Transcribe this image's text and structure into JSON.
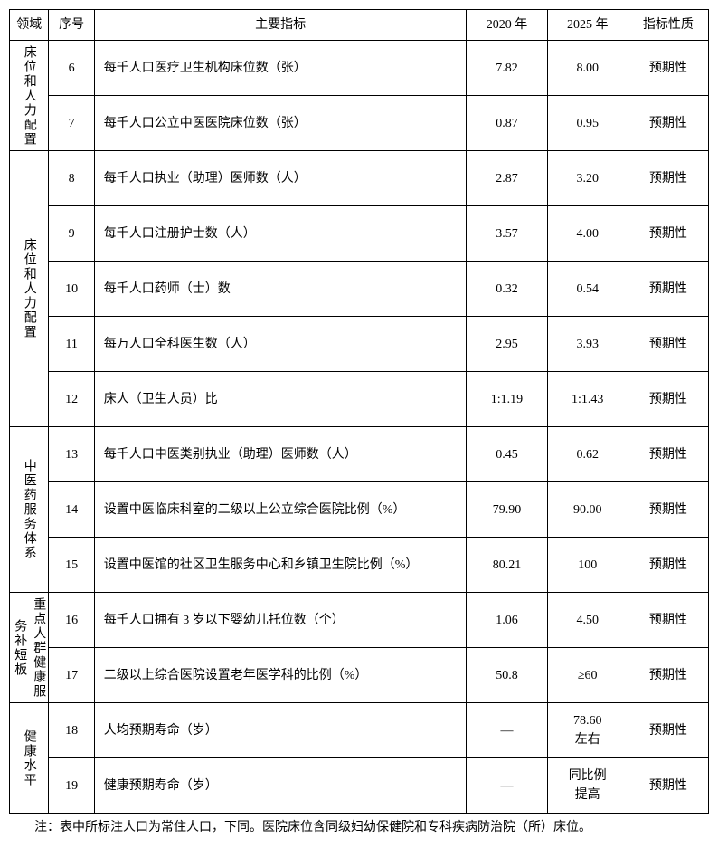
{
  "headers": {
    "domain": "领域",
    "num": "序号",
    "indicator": "主要指标",
    "y2020": "2020 年",
    "y2025": "2025 年",
    "nature": "指标性质"
  },
  "groups": [
    {
      "domain": "床位和人力配置",
      "rows": [
        {
          "num": "6",
          "indicator": "每千人口医疗卫生机构床位数（张）",
          "y2020": "7.82",
          "y2025": "8.00",
          "nature": "预期性"
        },
        {
          "num": "7",
          "indicator": "每千人口公立中医医院床位数（张）",
          "y2020": "0.87",
          "y2025": "0.95",
          "nature": "预期性"
        }
      ]
    },
    {
      "domain": "床位和人力配置",
      "rows": [
        {
          "num": "8",
          "indicator": "每千人口执业（助理）医师数（人）",
          "y2020": "2.87",
          "y2025": "3.20",
          "nature": "预期性"
        },
        {
          "num": "9",
          "indicator": "每千人口注册护士数（人）",
          "y2020": "3.57",
          "y2025": "4.00",
          "nature": "预期性"
        },
        {
          "num": "10",
          "indicator": "每千人口药师（士）数",
          "y2020": "0.32",
          "y2025": "0.54",
          "nature": "预期性"
        },
        {
          "num": "11",
          "indicator": "每万人口全科医生数（人）",
          "y2020": "2.95",
          "y2025": "3.93",
          "nature": "预期性"
        },
        {
          "num": "12",
          "indicator": "床人（卫生人员）比",
          "y2020": "1:1.19",
          "y2025": "1:1.43",
          "nature": "预期性"
        }
      ]
    },
    {
      "domain": "中医药服务体系",
      "rows": [
        {
          "num": "13",
          "indicator": "每千人口中医类别执业（助理）医师数（人）",
          "y2020": "0.45",
          "y2025": "0.62",
          "nature": "预期性"
        },
        {
          "num": "14",
          "indicator": "设置中医临床科室的二级以上公立综合医院比例（%）",
          "y2020": "79.90",
          "y2025": "90.00",
          "nature": "预期性"
        },
        {
          "num": "15",
          "indicator": "设置中医馆的社区卫生服务中心和乡镇卫生院比例（%）",
          "y2020": "80.21",
          "y2025": "100",
          "nature": "预期性"
        }
      ]
    },
    {
      "domain": "重点人群健康服务补短板",
      "rows": [
        {
          "num": "16",
          "indicator": "每千人口拥有 3 岁以下婴幼儿托位数（个）",
          "y2020": "1.06",
          "y2025": "4.50",
          "nature": "预期性"
        },
        {
          "num": "17",
          "indicator": "二级以上综合医院设置老年医学科的比例（%）",
          "y2020": "50.8",
          "y2025": "≥60",
          "nature": "预期性"
        }
      ]
    },
    {
      "domain": "健康水平",
      "rows": [
        {
          "num": "18",
          "indicator": "人均预期寿命（岁）",
          "y2020": "—",
          "y2025": "78.60\n左右",
          "nature": "预期性"
        },
        {
          "num": "19",
          "indicator": "健康预期寿命（岁）",
          "y2020": "—",
          "y2025": "同比例\n提高",
          "nature": "预期性"
        }
      ]
    }
  ],
  "footnote": "注：表中所标注人口为常住人口，下同。医院床位含同级妇幼保健院和专科疾病防治院（所）床位。"
}
